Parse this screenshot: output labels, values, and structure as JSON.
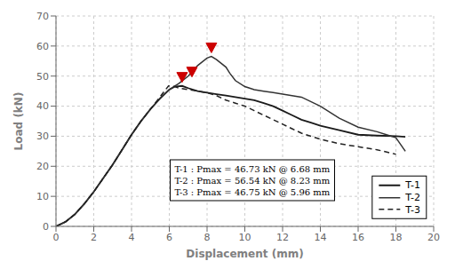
{
  "chart_data": {
    "type": "line",
    "title": "",
    "xlabel": "Displacement (mm)",
    "ylabel": "Load (kN)",
    "xlim": [
      0,
      20
    ],
    "ylim": [
      0,
      70
    ],
    "xticks": [
      0,
      2,
      4,
      6,
      8,
      10,
      12,
      14,
      16,
      18,
      20
    ],
    "yticks": [
      0,
      10,
      20,
      30,
      40,
      50,
      60,
      70
    ],
    "grid": true,
    "legend": "lower right",
    "annotations": [
      "T-1 : Pmax = 46.73 kN @ 6.68 mm",
      "T-2 : Pmax = 56.54 kN @ 8.23 mm",
      "T-3 : Pmax = 46.75 kN @ 5.96 mm"
    ],
    "series": [
      {
        "name": "T-1",
        "type": "line",
        "color": "#1a1a1a",
        "line_style": "solid",
        "x": [
          0,
          0.5,
          1.0,
          1.5,
          2.0,
          2.5,
          3.0,
          3.5,
          4.0,
          4.5,
          5.0,
          5.5,
          6.0,
          6.3,
          6.68,
          7.0,
          7.5,
          8.0,
          8.5,
          9.0,
          9.5,
          10.0,
          10.5,
          11.0,
          11.5,
          12.0,
          12.5,
          13.0,
          13.5,
          14.0,
          15.0,
          16.0,
          17.0,
          18.0,
          18.5
        ],
        "values": [
          0,
          1.5,
          4.0,
          7.5,
          11.5,
          16.0,
          20.5,
          25.5,
          30.5,
          35.0,
          39.0,
          42.5,
          45.5,
          46.5,
          46.73,
          46.0,
          45.0,
          44.5,
          44.0,
          43.5,
          43.0,
          42.5,
          42.0,
          41.0,
          40.0,
          38.5,
          37.0,
          35.5,
          34.5,
          33.5,
          32.0,
          30.5,
          30.2,
          30.0,
          29.8
        ]
      },
      {
        "name": "T-2",
        "type": "line",
        "color": "#333333",
        "line_style": "solid",
        "x": [
          0,
          0.5,
          1.0,
          1.5,
          2.0,
          2.5,
          3.0,
          3.5,
          4.0,
          4.5,
          5.0,
          5.5,
          6.0,
          6.5,
          7.0,
          7.5,
          8.0,
          8.23,
          8.5,
          9.0,
          9.2,
          9.5,
          10.0,
          10.5,
          11.0,
          11.5,
          12.0,
          12.5,
          13.0,
          14.0,
          15.0,
          16.0,
          17.0,
          17.5,
          18.0,
          18.5
        ],
        "values": [
          0,
          1.5,
          4.0,
          7.5,
          11.5,
          16.0,
          20.5,
          25.5,
          30.5,
          35.0,
          39.0,
          42.5,
          45.5,
          47.5,
          50.0,
          53.5,
          56.0,
          56.54,
          55.5,
          53.0,
          51.0,
          48.5,
          46.5,
          45.5,
          45.0,
          44.5,
          44.0,
          43.5,
          43.0,
          40.0,
          36.0,
          33.0,
          31.5,
          30.5,
          29.5,
          25.0
        ]
      },
      {
        "name": "T-3",
        "type": "line",
        "color": "#222222",
        "line_style": "dashed",
        "x": [
          0,
          0.5,
          1.0,
          1.5,
          2.0,
          2.5,
          3.0,
          3.5,
          4.0,
          4.5,
          5.0,
          5.5,
          5.96,
          6.3,
          6.5,
          7.0,
          7.5,
          8.0,
          8.5,
          9.0,
          9.5,
          10.0,
          10.5,
          11.0,
          11.5,
          12.0,
          12.5,
          13.0,
          14.0,
          15.0,
          16.0,
          17.0,
          18.0
        ],
        "values": [
          0,
          1.5,
          4.0,
          7.5,
          11.5,
          16.0,
          20.5,
          25.5,
          30.5,
          35.0,
          39.0,
          43.0,
          46.75,
          46.5,
          46.0,
          45.5,
          45.0,
          44.5,
          43.5,
          42.0,
          41.0,
          40.0,
          38.5,
          37.0,
          35.5,
          34.0,
          32.5,
          31.0,
          29.0,
          27.5,
          26.5,
          25.5,
          24.0
        ]
      },
      {
        "type": "scatter",
        "marker": "triangle-down",
        "color": "#cc0000",
        "x": [
          6.68,
          7.2,
          8.23
        ],
        "values": [
          49.73,
          51.5,
          59.54
        ]
      }
    ]
  }
}
